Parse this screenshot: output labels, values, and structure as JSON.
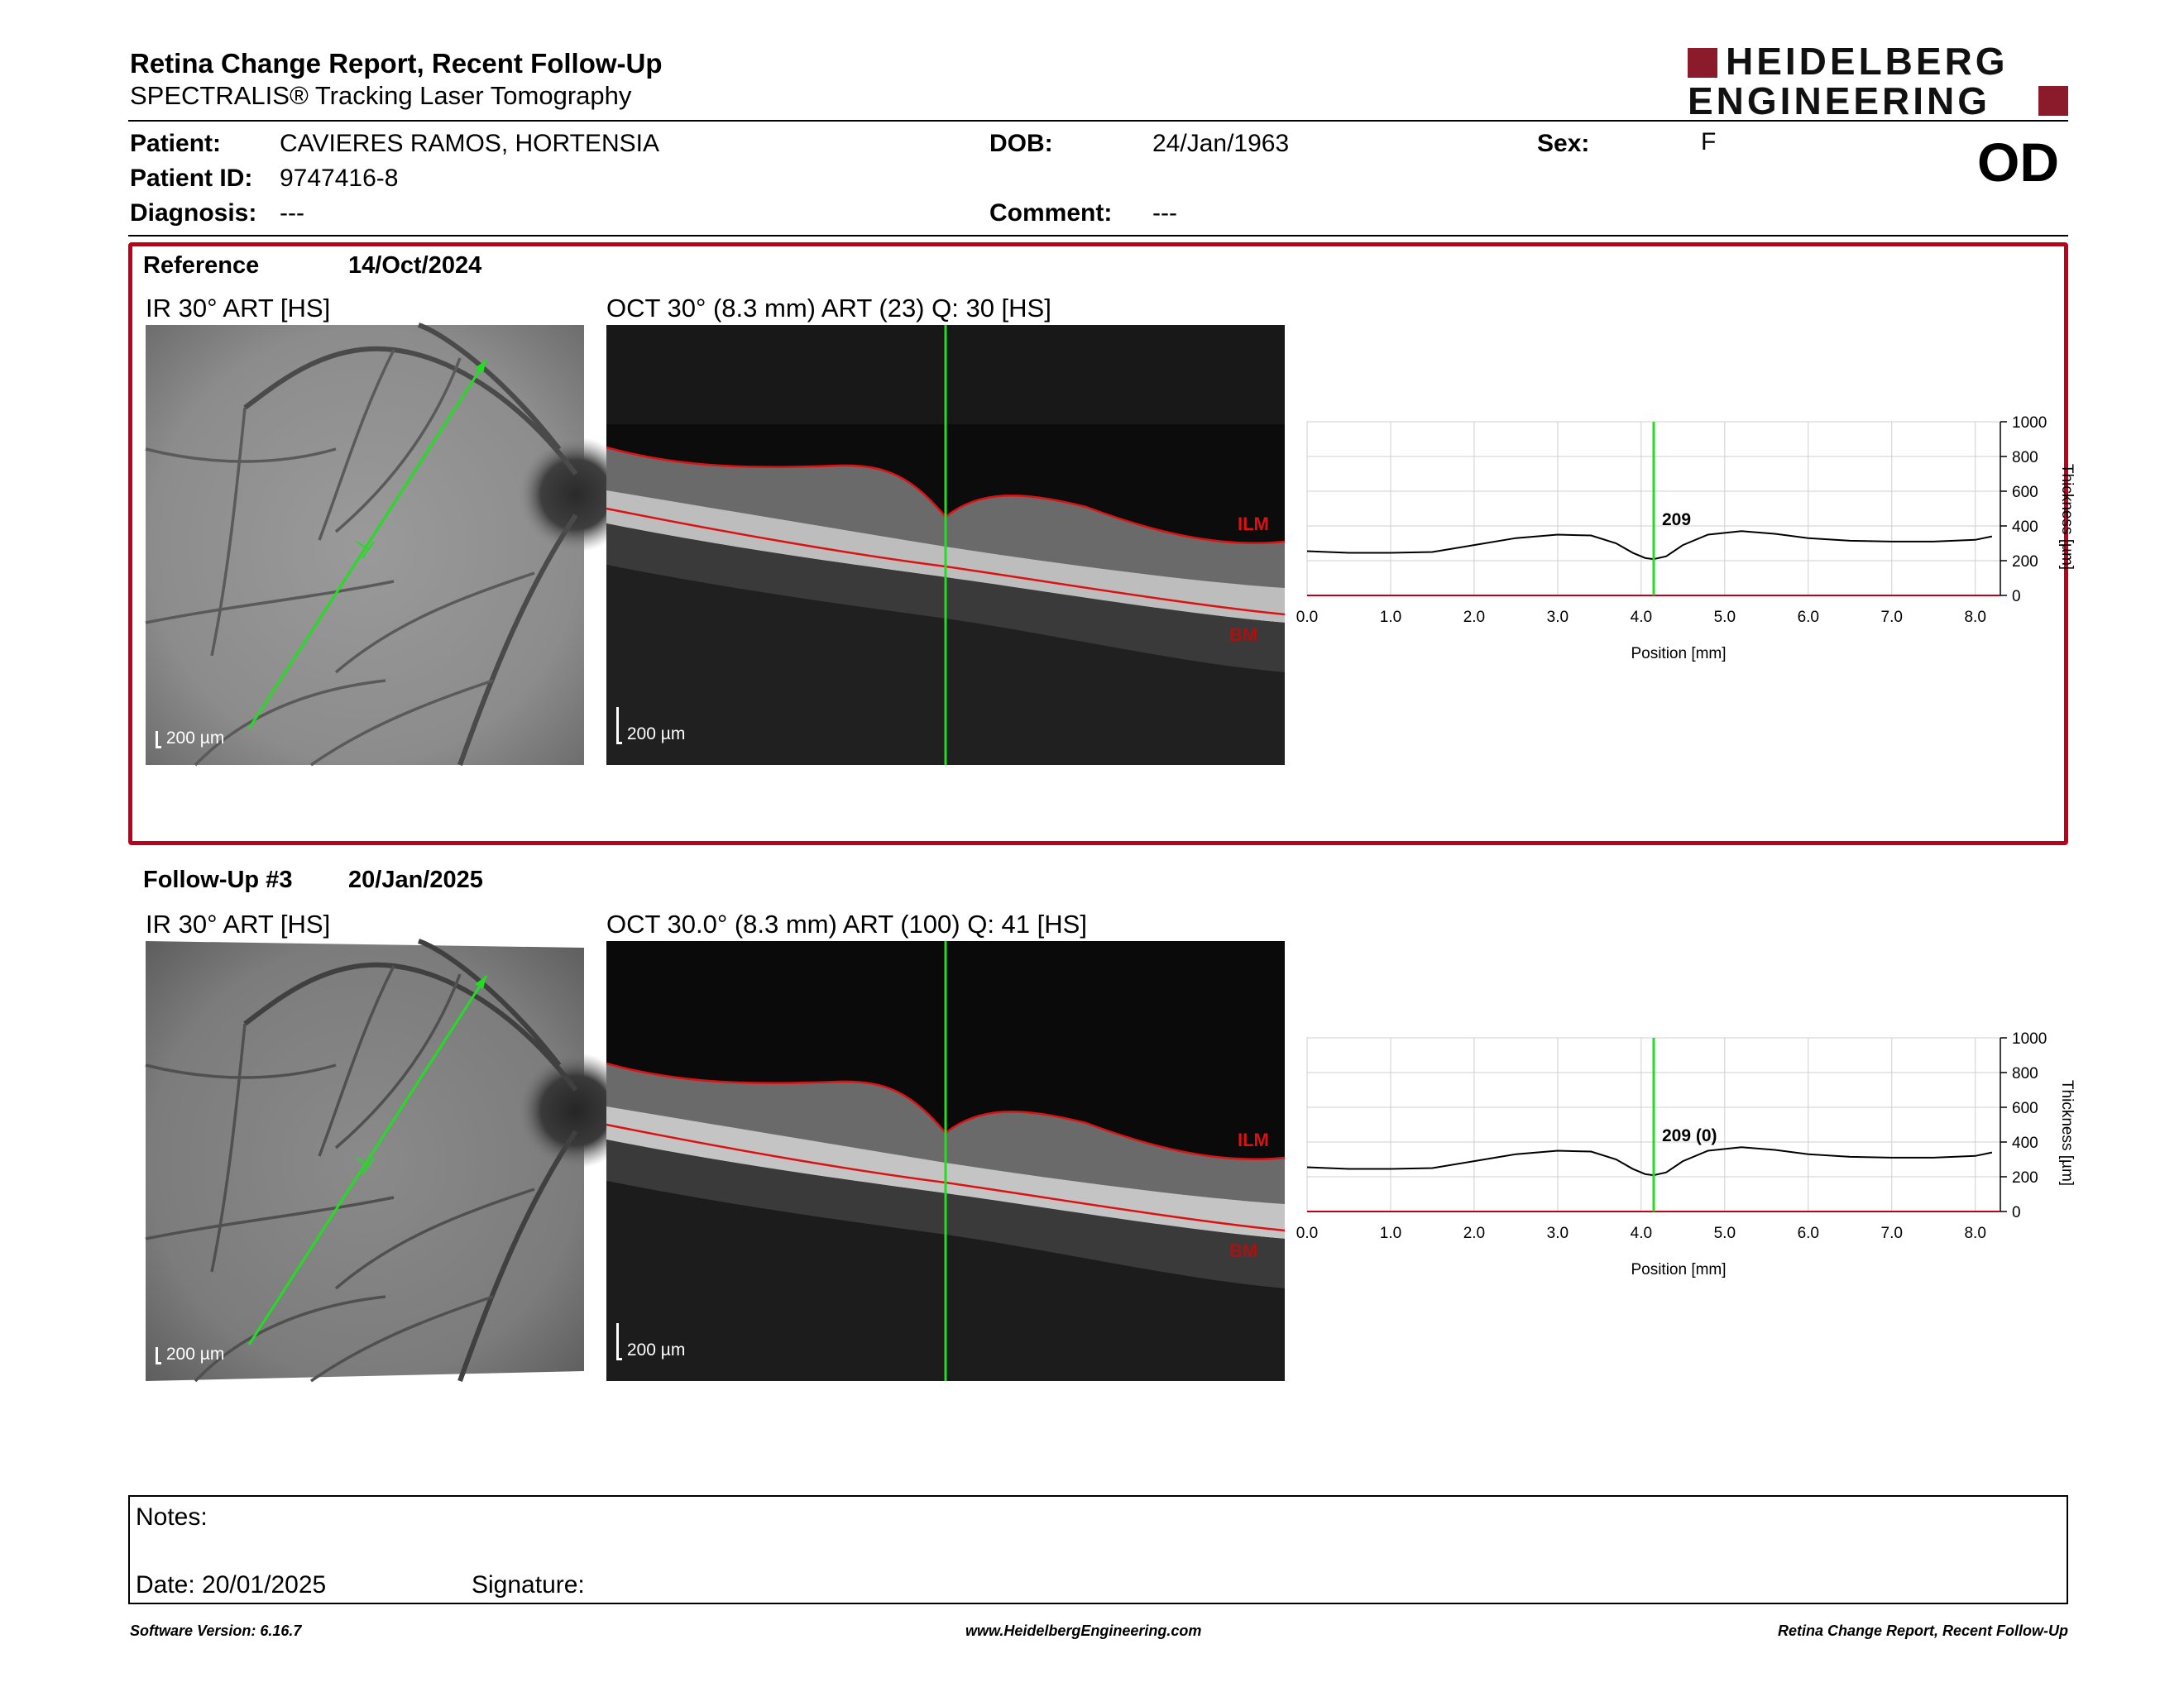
{
  "header": {
    "title": "Retina Change Report, Recent Follow-Up",
    "subtitle": "SPECTRALIS® Tracking Laser Tomography",
    "brand_line1": "HEIDELBERG",
    "brand_line2": "ENGINEERING",
    "eye": "OD"
  },
  "patient": {
    "patient_label": "Patient:",
    "patient_value": "CAVIERES RAMOS, HORTENSIA",
    "id_label": "Patient ID:",
    "id_value": "9747416-8",
    "diag_label": "Diagnosis:",
    "diag_value": "---",
    "dob_label": "DOB:",
    "dob_value": "24/Jan/1963",
    "comment_label": "Comment:",
    "comment_value": "---",
    "sex_label": "Sex:",
    "sex_value": "F"
  },
  "reference": {
    "label": "Reference",
    "date": "14/Oct/2024",
    "ir_title": "IR 30° ART [HS]",
    "oct_title": "OCT 30° (8.3 mm) ART (23) Q: 30 [HS]",
    "ir_scale": "200 µm",
    "oct_scale": "200 µm",
    "ilm": "ILM",
    "bm": "BM"
  },
  "followup": {
    "label": "Follow-Up #3",
    "date": "20/Jan/2025",
    "ir_title": "IR 30° ART [HS]",
    "oct_title": "OCT 30.0° (8.3 mm) ART (100) Q: 41 [HS]",
    "ir_scale": "200 µm",
    "oct_scale": "200 µm",
    "ilm": "ILM",
    "bm": "BM"
  },
  "chart_data": [
    {
      "type": "line",
      "ylabel": "Thickness [µm]",
      "xlabel": "Position [mm]",
      "xlim": [
        0,
        8.3
      ],
      "ylim": [
        0,
        1000
      ],
      "xticks": [
        "0.0",
        "1.0",
        "2.0",
        "3.0",
        "4.0",
        "5.0",
        "6.0",
        "7.0",
        "8.0"
      ],
      "yticks": [
        "0",
        "200",
        "400",
        "600",
        "800",
        "1000"
      ],
      "marker_x": 4.15,
      "marker_label": "209",
      "grid": true,
      "series": [
        {
          "x": [
            0,
            0.5,
            1.0,
            1.5,
            2.0,
            2.5,
            3.0,
            3.4,
            3.7,
            3.9,
            4.05,
            4.15,
            4.3,
            4.5,
            4.8,
            5.2,
            5.6,
            6.0,
            6.5,
            7.0,
            7.5,
            8.0,
            8.2
          ],
          "values": [
            255,
            245,
            245,
            250,
            290,
            330,
            350,
            345,
            300,
            245,
            215,
            209,
            225,
            290,
            350,
            370,
            355,
            330,
            315,
            310,
            310,
            320,
            340
          ]
        }
      ]
    },
    {
      "type": "line",
      "ylabel": "Thickness [µm]",
      "xlabel": "Position [mm]",
      "xlim": [
        0,
        8.3
      ],
      "ylim": [
        0,
        1000
      ],
      "xticks": [
        "0.0",
        "1.0",
        "2.0",
        "3.0",
        "4.0",
        "5.0",
        "6.0",
        "7.0",
        "8.0"
      ],
      "yticks": [
        "0",
        "200",
        "400",
        "600",
        "800",
        "1000"
      ],
      "marker_x": 4.15,
      "marker_label": "209 (0)",
      "grid": true,
      "series": [
        {
          "x": [
            0,
            0.5,
            1.0,
            1.5,
            2.0,
            2.5,
            3.0,
            3.4,
            3.7,
            3.9,
            4.05,
            4.15,
            4.3,
            4.5,
            4.8,
            5.2,
            5.6,
            6.0,
            6.5,
            7.0,
            7.5,
            8.0,
            8.2
          ],
          "values": [
            255,
            245,
            245,
            250,
            290,
            330,
            350,
            345,
            300,
            245,
            215,
            209,
            225,
            290,
            350,
            370,
            355,
            330,
            315,
            310,
            310,
            320,
            340
          ]
        }
      ]
    }
  ],
  "notes": {
    "notes_label": "Notes:",
    "date_label": "Date: 20/01/2025",
    "signature_label": "Signature:"
  },
  "footer": {
    "left": "Software Version: 6.16.7",
    "center": "www.HeidelbergEngineering.com",
    "right": "Retina Change Report, Recent Follow-Up"
  },
  "colors": {
    "accent_red": "#c0001a",
    "brand_red": "#8b1a2b",
    "scan_green": "#22dd22"
  }
}
